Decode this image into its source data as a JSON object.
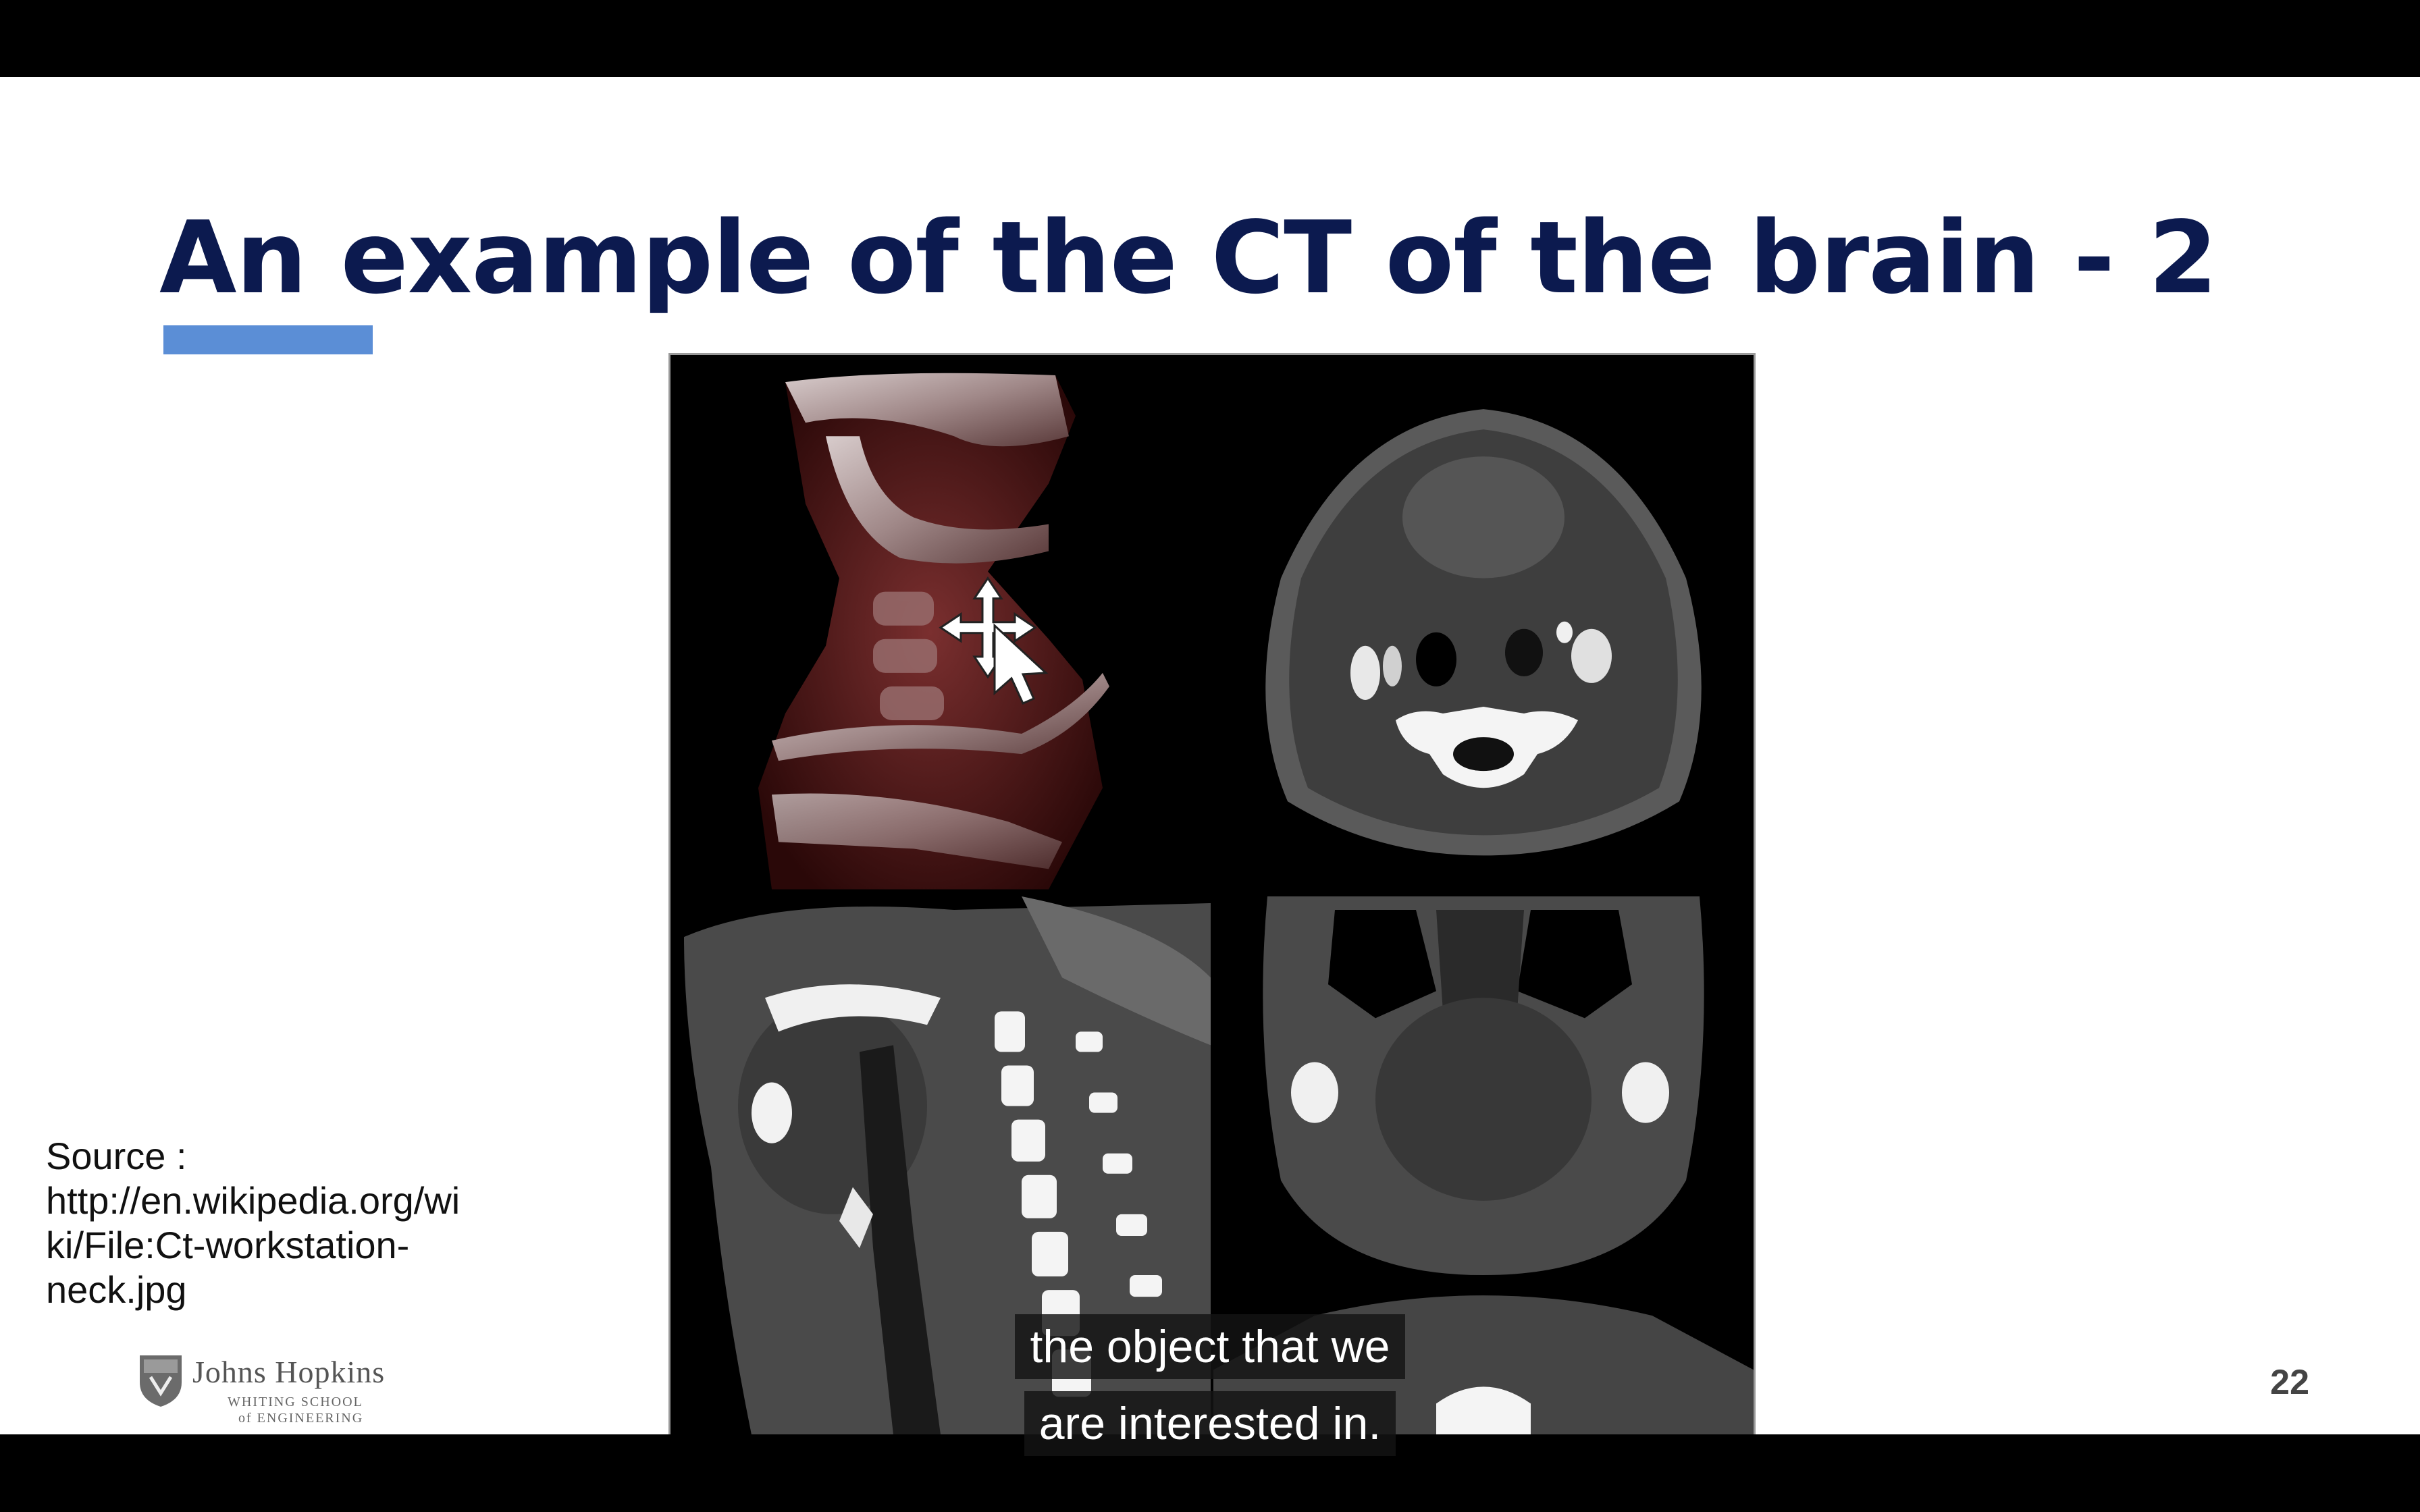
{
  "slide": {
    "title": "An example of the CT of the brain - 2",
    "source_lines": [
      "Source :",
      "http://en.wikipedia.org/wi",
      "ki/File:Ct-workstation-",
      "neck.jpg"
    ],
    "page_number": "22",
    "logo": {
      "name": "Johns Hopkins",
      "subtitle_line1": "WHITING SCHOOL",
      "subtitle_line2": "of ENGINEERING"
    },
    "ct_panels": [
      "3d-volume-render",
      "axial-slice",
      "sagittal-slice",
      "coronal-slice"
    ],
    "colors": {
      "title": "#0c1a4f",
      "accent_bar": "#5b8ed6"
    }
  },
  "subtitles": {
    "line1": "the object that we",
    "line2": "are interested in."
  }
}
